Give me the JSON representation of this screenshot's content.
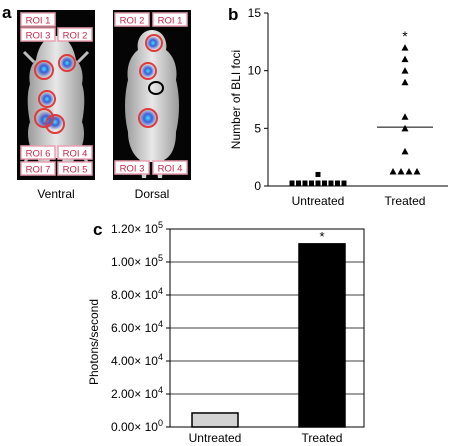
{
  "panels": {
    "a": {
      "letter": "a",
      "left": {
        "caption": "Ventral",
        "rois": [
          "ROI 1",
          "ROI 3",
          "ROI 2",
          "ROI 6",
          "ROI 4",
          "ROI 7",
          "ROI 5"
        ]
      },
      "right": {
        "caption": "Dorsal",
        "rois": [
          "ROI 2",
          "ROI 1",
          "ROI 3",
          "ROI 4"
        ]
      }
    },
    "b": {
      "letter": "b"
    },
    "c": {
      "letter": "c"
    }
  },
  "colors": {
    "roi_outline": "#e03a3a",
    "roi_label_border": "#e8a0b0",
    "roi_label_text": "#c8284a",
    "bli_signal": "#3a5fd8",
    "bar_untreated": "#d3d3d3",
    "bar_treated": "#000000"
  },
  "chart_data": [
    {
      "type": "scatter",
      "panel": "b",
      "ylabel": "Number of BLI foci",
      "categories": [
        "Untreated",
        "Treated"
      ],
      "ylim": [
        0,
        15
      ],
      "yticks": [
        0,
        5,
        10,
        15
      ],
      "series": [
        {
          "category": "Untreated",
          "marker": "square",
          "values": [
            0,
            0,
            0,
            0,
            0,
            0,
            0,
            0,
            0,
            1
          ],
          "median": 0
        },
        {
          "category": "Treated",
          "marker": "triangle",
          "values": [
            12,
            11,
            10,
            9,
            6,
            5,
            3,
            1,
            1,
            1,
            1
          ],
          "median": 5.1
        }
      ],
      "annotations": [
        {
          "category": "Treated",
          "text": "*"
        }
      ]
    },
    {
      "type": "bar",
      "panel": "c",
      "ylabel": "Photons/second",
      "categories": [
        "Untreated",
        "Treated"
      ],
      "values": [
        8500,
        111000
      ],
      "ylim": [
        0,
        120000
      ],
      "ytick_labels": [
        {
          "mant": "0.00",
          "exp": "0"
        },
        {
          "mant": "2.00",
          "exp": "4"
        },
        {
          "mant": "4.00",
          "exp": "4"
        },
        {
          "mant": "6.00",
          "exp": "4"
        },
        {
          "mant": "8.00",
          "exp": "4"
        },
        {
          "mant": "1.00",
          "exp": "5"
        },
        {
          "mant": "1.20",
          "exp": "5"
        }
      ],
      "yticks": [
        0,
        20000,
        40000,
        60000,
        80000,
        100000,
        120000
      ],
      "tick_labels_omitted_in_image": [
        110000
      ],
      "annotations": [
        {
          "category": "Treated",
          "text": "*"
        }
      ]
    }
  ]
}
